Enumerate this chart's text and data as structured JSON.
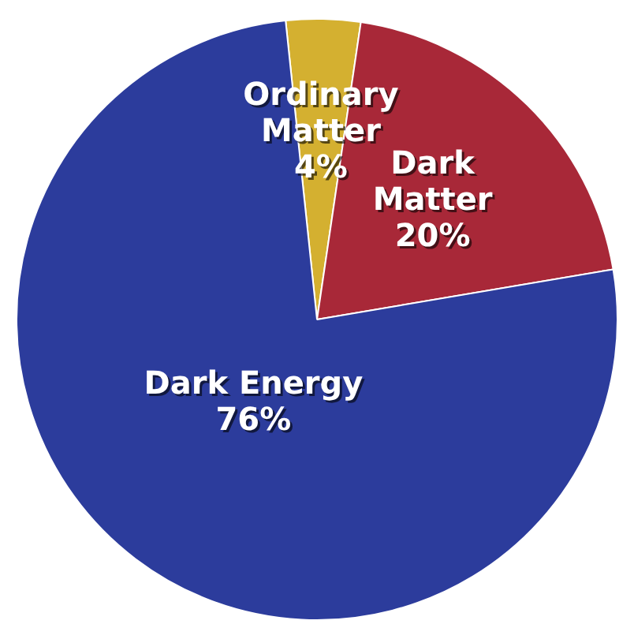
{
  "chart_data": {
    "type": "pie",
    "categories": [
      "Ordinary Matter",
      "Dark Matter",
      "Dark Energy"
    ],
    "values": [
      4,
      20,
      76
    ],
    "colors": [
      "#d4b030",
      "#a82838",
      "#2c3c9c"
    ],
    "value_labels": [
      "4%",
      "20%",
      "76%"
    ],
    "legend": false
  }
}
